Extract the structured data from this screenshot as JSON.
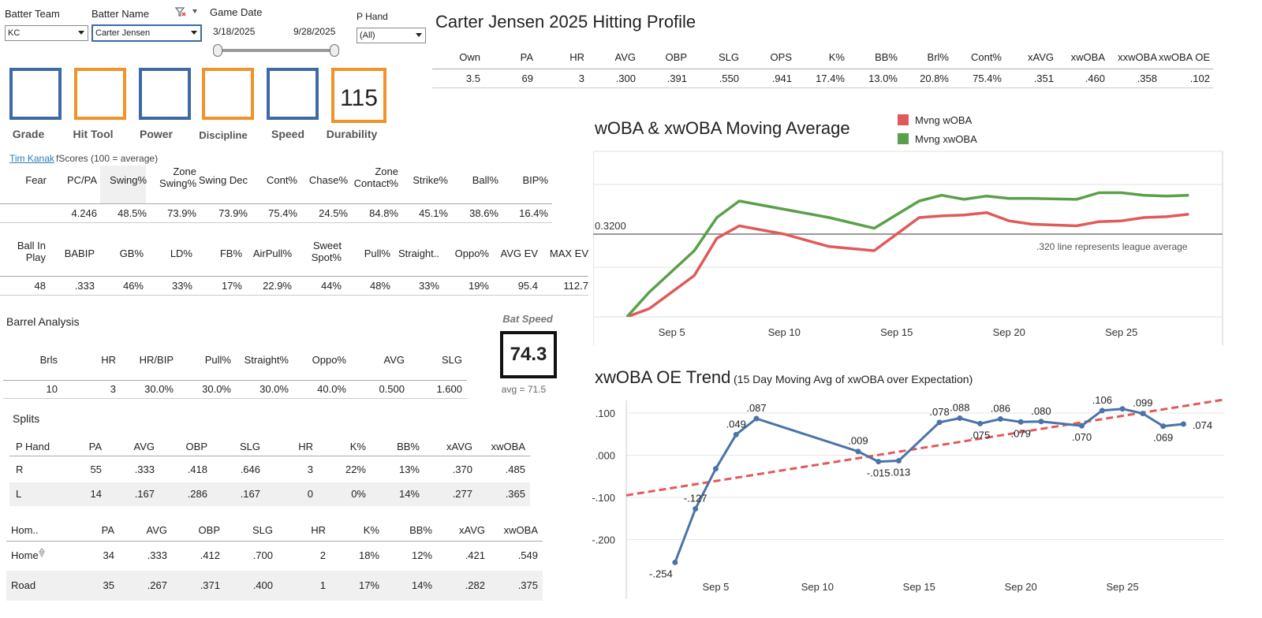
{
  "filters": {
    "batter_team_label": "Batter Team",
    "batter_team_value": "KC",
    "batter_name_label": "Batter Name",
    "batter_name_value": "Carter Jensen",
    "game_date_label": "Game Date",
    "date_start": "3/18/2025",
    "date_end": "9/28/2025",
    "p_hand_label": "P Hand",
    "p_hand_value": "(All)"
  },
  "grades": [
    {
      "label": "Grade",
      "value": "",
      "color": "#3d6aa6"
    },
    {
      "label": "Hit Tool",
      "value": "",
      "color": "#f0932a"
    },
    {
      "label": "Power",
      "value": "",
      "color": "#3d6aa6"
    },
    {
      "label": "Discipline",
      "value": "",
      "color": "#f0932a"
    },
    {
      "label": "Speed",
      "value": "",
      "color": "#3d6aa6"
    },
    {
      "label": "Durability",
      "value": "115",
      "color": "#f0932a"
    }
  ],
  "fscores_link": "Tim Kanak",
  "fscores_caption": "fScores (100 = average)",
  "profile": {
    "title": "Carter Jensen 2025 Hitting Profile",
    "headers": [
      "Own",
      "PA",
      "HR",
      "AVG",
      "OBP",
      "SLG",
      "OPS",
      "K%",
      "BB%",
      "Brl%",
      "Cont%",
      "xAVG",
      "xwOBA",
      "xxwOBA",
      "xwOBA OE"
    ],
    "values": [
      "3.5",
      "69",
      "3",
      ".300",
      ".391",
      ".550",
      ".941",
      "17.4%",
      "13.0%",
      "20.8%",
      "75.4%",
      ".351",
      ".460",
      ".358",
      ".102"
    ]
  },
  "discipline": {
    "headers": [
      "Fear",
      "PC/PA",
      "Swing%",
      "Zone\nSwing%",
      "Swing Dec",
      "Cont%",
      "Chase%",
      "Zone\nContact%",
      "Strike%",
      "Ball%",
      "BIP%"
    ],
    "values": [
      "",
      "4.246",
      "48.5%",
      "73.9%",
      "73.9%",
      "75.4%",
      "24.5%",
      "84.8%",
      "45.1%",
      "38.6%",
      "16.4%"
    ]
  },
  "batted": {
    "headers": [
      "Ball In\nPlay",
      "BABIP",
      "GB%",
      "LD%",
      "FB%",
      "AirPull%",
      "Sweet\nSpot%",
      "Pull%",
      "Straight..",
      "Oppo%",
      "AVG EV",
      "MAX EV"
    ],
    "values": [
      "48",
      ".333",
      "46%",
      "33%",
      "17%",
      "22.9%",
      "44%",
      "48%",
      "33%",
      "19%",
      "95.4",
      "112.7"
    ]
  },
  "barrel": {
    "title": "Barrel Analysis",
    "headers": [
      "Brls",
      "HR",
      "HR/BIP",
      "Pull%",
      "Straight%",
      "Oppo%",
      "AVG",
      "SLG"
    ],
    "values": [
      "10",
      "3",
      "30.0%",
      "30.0%",
      "30.0%",
      "40.0%",
      "0.500",
      "1.600"
    ]
  },
  "bat_speed": {
    "label": "Bat Speed",
    "value": "74.3",
    "avg": "avg = 71.5"
  },
  "splits": {
    "title": "Splits",
    "hand_headers": [
      "P Hand",
      "PA",
      "AVG",
      "OBP",
      "SLG",
      "HR",
      "K%",
      "BB%",
      "xAVG",
      "xwOBA"
    ],
    "hand_rows": [
      [
        "R",
        "55",
        ".333",
        ".418",
        ".646",
        "3",
        "22%",
        "13%",
        ".370",
        ".485"
      ],
      [
        "L",
        "14",
        ".167",
        ".286",
        ".167",
        "0",
        "0%",
        "14%",
        ".277",
        ".365"
      ]
    ],
    "home_headers": [
      "Hom..",
      "PA",
      "AVG",
      "OBP",
      "SLG",
      "HR",
      "K%",
      "BB%",
      "xAVG",
      "xwOBA"
    ],
    "home_rows": [
      [
        "Home",
        "34",
        ".333",
        ".412",
        ".700",
        "2",
        "18%",
        "12%",
        ".421",
        ".549"
      ],
      [
        "Road",
        "35",
        ".267",
        ".371",
        ".400",
        "1",
        "17%",
        "14%",
        ".282",
        ".375"
      ]
    ]
  },
  "chart_data": [
    {
      "type": "line",
      "title": "wOBA & xwOBA Moving Average",
      "x_ticks": [
        "Sep 5",
        "Sep 10",
        "Sep 15",
        "Sep 20",
        "Sep 25"
      ],
      "x_tick_days": [
        5,
        10,
        15,
        20,
        25
      ],
      "reference_line": {
        "value": 0.32,
        "label": "0.3200",
        "note": ".320 line represents league average"
      },
      "ylim": [
        0.22,
        0.42
      ],
      "xlim": [
        1.5,
        29.5
      ],
      "legend": "top-right",
      "series": [
        {
          "name": "Mvng wOBA",
          "color": "#e05a5a",
          "x": [
            3,
            4,
            6,
            7,
            8,
            10,
            12,
            14,
            16,
            17,
            18,
            19,
            20,
            21,
            23,
            24,
            25,
            26,
            27,
            28
          ],
          "y": [
            0.22,
            0.23,
            0.27,
            0.315,
            0.33,
            0.32,
            0.305,
            0.3,
            0.34,
            0.342,
            0.343,
            0.346,
            0.336,
            0.332,
            0.33,
            0.335,
            0.336,
            0.34,
            0.341,
            0.344
          ]
        },
        {
          "name": "Mvng xwOBA",
          "color": "#5aa04a",
          "x": [
            3,
            4,
            6,
            7,
            8,
            10,
            12,
            14,
            16,
            17,
            18,
            19,
            20,
            21,
            23,
            24,
            25,
            26,
            27,
            28
          ],
          "y": [
            0.22,
            0.25,
            0.3,
            0.34,
            0.36,
            0.35,
            0.34,
            0.327,
            0.36,
            0.367,
            0.362,
            0.366,
            0.363,
            0.363,
            0.362,
            0.37,
            0.37,
            0.367,
            0.366,
            0.367
          ]
        }
      ]
    },
    {
      "type": "line",
      "title": "xwOBA OE Trend",
      "subtitle": "(15 Day Moving Avg of xwOBA over Expectation)",
      "x_ticks": [
        "Sep 5",
        "Sep 10",
        "Sep 15",
        "Sep 20",
        "Sep 25"
      ],
      "x_tick_days": [
        5,
        10,
        15,
        20,
        25
      ],
      "y_ticks": [
        ".100",
        ".000",
        "-.100",
        "-.200"
      ],
      "y_tick_values": [
        0.1,
        0.0,
        -0.1,
        -0.2
      ],
      "ylim": [
        -0.27,
        0.13
      ],
      "xlim": [
        0.6,
        30.0
      ],
      "series": [
        {
          "name": "",
          "color": "#4a73a8",
          "x": [
            3,
            4,
            5,
            6,
            7,
            12,
            13,
            14,
            16,
            17,
            18,
            19,
            20,
            21,
            23,
            24,
            25,
            26,
            27,
            28
          ],
          "y": [
            -0.254,
            -0.127,
            -0.032,
            0.049,
            0.087,
            0.009,
            -0.015,
            -0.013,
            0.078,
            0.088,
            0.075,
            0.086,
            0.079,
            0.08,
            0.07,
            0.106,
            0.11,
            0.099,
            0.069,
            0.074
          ],
          "labels": [
            "-.254",
            "-.127",
            "",
            ".049",
            ".087",
            ".009",
            "-.015",
            "-.013",
            ".078",
            ".088",
            ".075",
            ".086",
            ".079",
            ".080",
            ".070",
            ".106",
            "",
            ".099",
            ".069",
            ".074"
          ]
        }
      ],
      "trend_line": {
        "color": "#e05a5a",
        "x": [
          0.6,
          30.0
        ],
        "y": [
          -0.095,
          0.132
        ]
      }
    }
  ]
}
